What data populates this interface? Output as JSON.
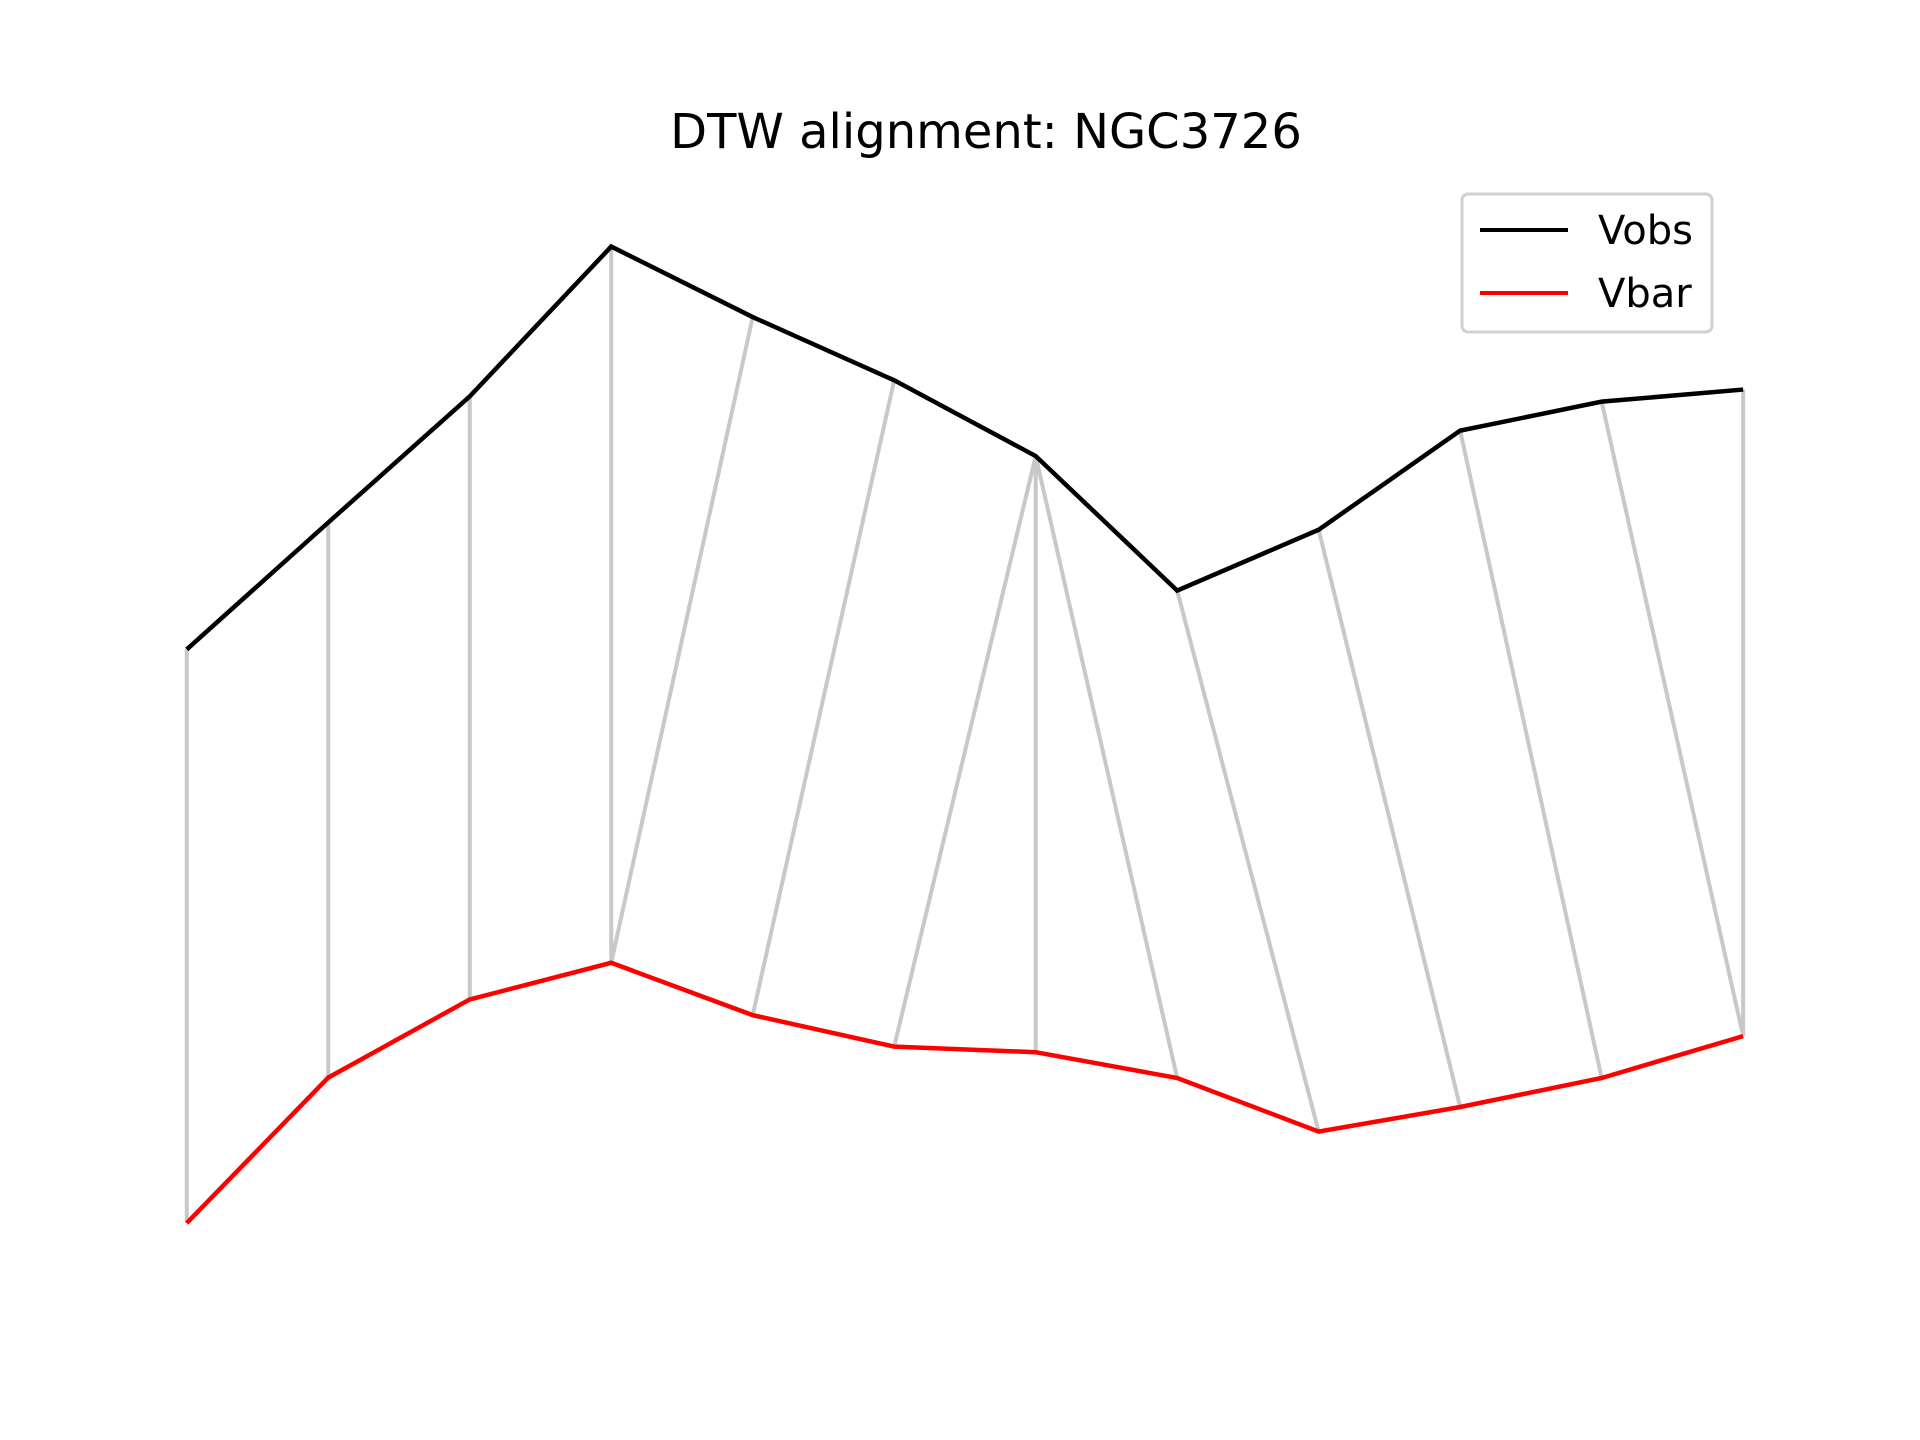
{
  "chart_data": {
    "type": "line",
    "title": "DTW alignment: NGC3726",
    "xlabel": "",
    "ylabel": "",
    "axes_visible": false,
    "grid": false,
    "legend": {
      "placement": "top-right"
    },
    "x": [
      0,
      1,
      2,
      3,
      4,
      5,
      6,
      7,
      8,
      9,
      10,
      11
    ],
    "series": [
      {
        "name": "Vobs",
        "color": "#000000",
        "values": [
          0.0,
          0.315,
          0.628,
          1.0,
          0.825,
          0.668,
          0.48,
          0.146,
          0.297,
          0.543,
          0.615,
          0.645
        ]
      },
      {
        "name": "Vbar",
        "color": "#ff0000",
        "values": [
          -1.424,
          -1.063,
          -0.869,
          -0.778,
          -0.908,
          -0.986,
          -1.0,
          -1.064,
          -1.197,
          -1.136,
          -1.064,
          -0.96
        ]
      }
    ],
    "alignment": {
      "color": "#c8c8c8",
      "pairs": [
        [
          0,
          0
        ],
        [
          1,
          1
        ],
        [
          2,
          2
        ],
        [
          3,
          3
        ],
        [
          4,
          3
        ],
        [
          5,
          4
        ],
        [
          6,
          5
        ],
        [
          6,
          6
        ],
        [
          6,
          7
        ],
        [
          7,
          8
        ],
        [
          8,
          9
        ],
        [
          9,
          10
        ],
        [
          10,
          11
        ],
        [
          11,
          11
        ]
      ]
    },
    "xlim": [
      -1.32,
      12.25
    ],
    "ylim": [
      -1.63,
      1.2
    ]
  }
}
